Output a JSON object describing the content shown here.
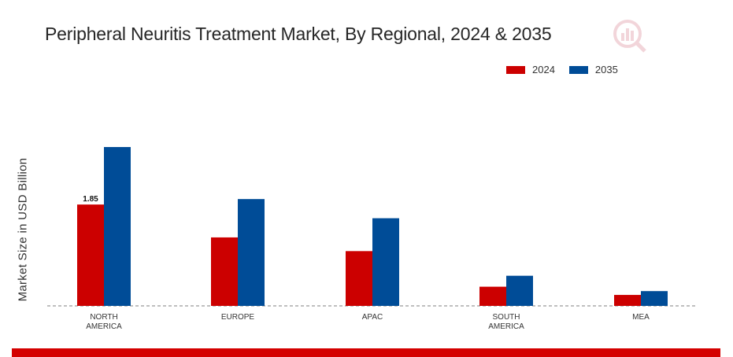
{
  "chart_data": {
    "type": "bar",
    "title": "Peripheral Neuritis Treatment Market, By Regional, 2024 & 2035",
    "ylabel": "Market Size in USD Billion",
    "xlabel": "",
    "categories": [
      "NORTH AMERICA",
      "EUROPE",
      "APAC",
      "SOUTH AMERICA",
      "MEA"
    ],
    "series": [
      {
        "name": "2024",
        "color": "#cc0000",
        "values": [
          1.85,
          1.25,
          1.0,
          0.35,
          0.2
        ]
      },
      {
        "name": "2035",
        "color": "#004c97",
        "values": [
          2.9,
          1.95,
          1.6,
          0.55,
          0.27
        ]
      }
    ],
    "data_labels": [
      {
        "series": 0,
        "index": 0,
        "text": "1.85"
      }
    ],
    "ylim": [
      0,
      3.0
    ],
    "grid": false,
    "legend_position": "top-right"
  }
}
